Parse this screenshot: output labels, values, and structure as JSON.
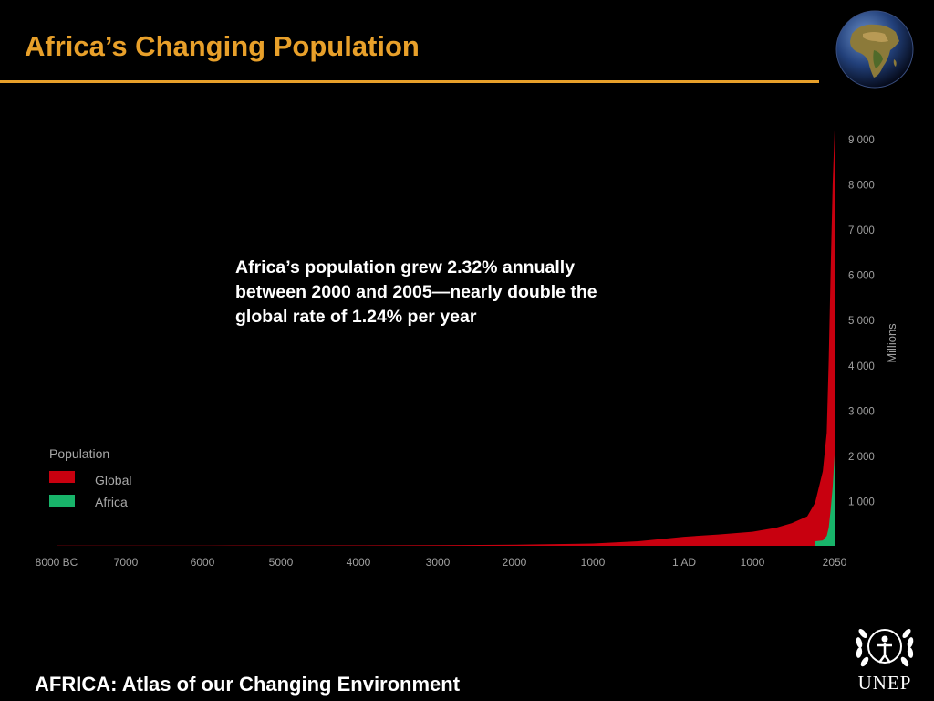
{
  "slide": {
    "title": "Africa’s Changing Population",
    "annotation": "Africa’s population grew 2.32% annually between 2000 and 2005—nearly double the global rate of 1.24% per year",
    "footer": "AFRICA: Atlas of our Changing Environment",
    "logo_text": "UNEP",
    "accent_color": "#e8a02a"
  },
  "chart_data": {
    "type": "area",
    "title": "",
    "xlabel": "",
    "ylabel": "Millions",
    "ylim": [
      0,
      9000
    ],
    "x_ticks": [
      "8000 BC",
      "7000",
      "6000",
      "5000",
      "4000",
      "3000",
      "2000",
      "1000",
      "1 AD",
      "1000",
      "2050"
    ],
    "y_ticks": [
      "1 000",
      "2 000",
      "3 000",
      "4 000",
      "5 000",
      "6 000",
      "7 000",
      "8 000",
      "9 000"
    ],
    "legend": {
      "title": "Population",
      "position": "bottom-left",
      "entries": [
        {
          "label": "Global",
          "color": "#c8000f"
        },
        {
          "label": "Africa",
          "color": "#18b46a"
        }
      ]
    },
    "series": [
      {
        "name": "Global",
        "color": "#c8000f",
        "points": [
          {
            "x": -8000,
            "y": 5
          },
          {
            "x": -6000,
            "y": 7
          },
          {
            "x": -4000,
            "y": 10
          },
          {
            "x": -3000,
            "y": 14
          },
          {
            "x": -2000,
            "y": 27
          },
          {
            "x": -1000,
            "y": 50
          },
          {
            "x": -500,
            "y": 100
          },
          {
            "x": 1,
            "y": 200
          },
          {
            "x": 500,
            "y": 250
          },
          {
            "x": 1000,
            "y": 310
          },
          {
            "x": 1300,
            "y": 400
          },
          {
            "x": 1500,
            "y": 500
          },
          {
            "x": 1700,
            "y": 650
          },
          {
            "x": 1800,
            "y": 950
          },
          {
            "x": 1900,
            "y": 1650
          },
          {
            "x": 1950,
            "y": 2500
          },
          {
            "x": 1975,
            "y": 4100
          },
          {
            "x": 2000,
            "y": 6100
          },
          {
            "x": 2025,
            "y": 8000
          },
          {
            "x": 2050,
            "y": 9200
          }
        ]
      },
      {
        "name": "Africa",
        "color": "#18b46a",
        "points": [
          {
            "x": 1800,
            "y": 100
          },
          {
            "x": 1900,
            "y": 120
          },
          {
            "x": 1950,
            "y": 220
          },
          {
            "x": 1975,
            "y": 400
          },
          {
            "x": 2000,
            "y": 800
          },
          {
            "x": 2025,
            "y": 1300
          },
          {
            "x": 2050,
            "y": 2000
          }
        ]
      }
    ]
  }
}
